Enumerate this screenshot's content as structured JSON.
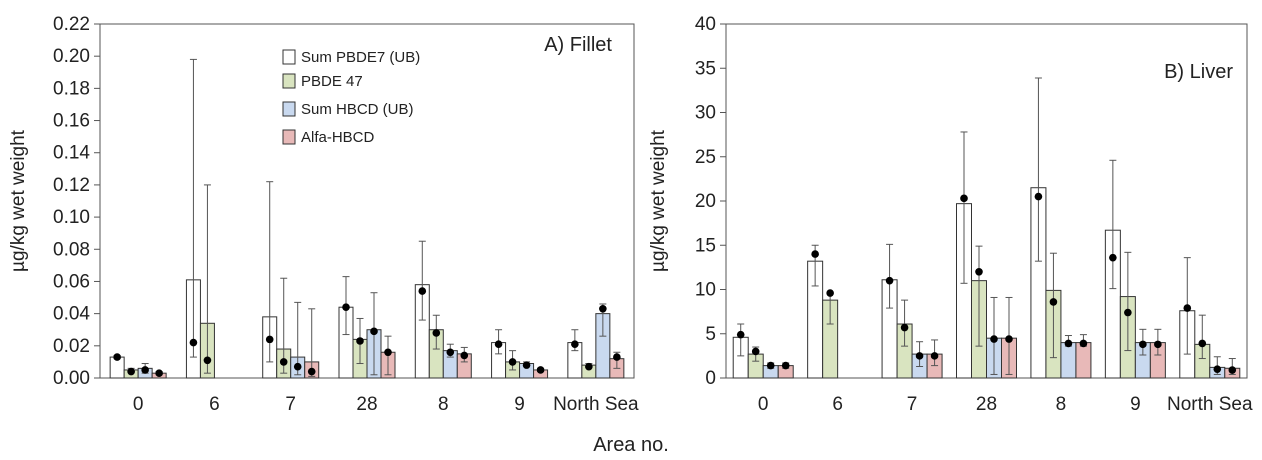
{
  "xlabel": "Area no.",
  "chart_data": [
    {
      "type": "bar",
      "title": "A) Fillet",
      "ylabel": "µg/kg wet weight",
      "xlabel": "Area no.",
      "ylim": [
        0,
        0.22
      ],
      "yticks": [
        "0.00",
        "0.02",
        "0.04",
        "0.06",
        "0.08",
        "0.10",
        "0.12",
        "0.14",
        "0.16",
        "0.18",
        "0.20",
        "0.22"
      ],
      "categories": [
        "0",
        "6",
        "7",
        "28",
        "8",
        "9",
        "North Sea"
      ],
      "legend_position": "top-right",
      "series": [
        {
          "name": "Sum PBDE7 (UB)",
          "color": "#ffffff",
          "values": [
            0.013,
            0.061,
            0.038,
            0.044,
            0.058,
            0.022,
            0.022
          ],
          "err_high": [
            0.014,
            0.198,
            0.122,
            0.063,
            0.085,
            0.03,
            0.03
          ],
          "err_low": [
            0.012,
            0.013,
            0.01,
            0.027,
            0.036,
            0.015,
            0.017
          ],
          "dots": [
            0.013,
            0.022,
            0.024,
            0.044,
            0.054,
            0.021,
            0.021
          ]
        },
        {
          "name": "PBDE 47",
          "color": "#d9e4c0",
          "values": [
            0.005,
            0.034,
            0.018,
            0.024,
            0.03,
            0.01,
            0.008
          ],
          "err_high": [
            0.006,
            0.12,
            0.062,
            0.037,
            0.039,
            0.017,
            0.009
          ],
          "err_low": [
            0.004,
            0.003,
            0.003,
            0.009,
            0.018,
            0.005,
            0.007
          ],
          "dots": [
            0.004,
            0.011,
            0.01,
            0.023,
            0.028,
            0.01,
            0.007
          ]
        },
        {
          "name": "Sum HBCD (UB)",
          "color": "#c9d9ef",
          "values": [
            0.006,
            null,
            0.013,
            0.03,
            0.017,
            0.009,
            0.04
          ],
          "err_high": [
            0.009,
            null,
            0.047,
            0.053,
            0.021,
            0.01,
            0.046
          ],
          "err_low": [
            0.003,
            null,
            0.002,
            0.002,
            0.013,
            0.008,
            0.026
          ],
          "dots": [
            0.005,
            null,
            0.007,
            0.029,
            0.016,
            0.008,
            0.043
          ]
        },
        {
          "name": "Alfa-HBCD",
          "color": "#e8b9b8",
          "values": [
            0.003,
            null,
            0.01,
            0.016,
            0.015,
            0.005,
            0.012
          ],
          "err_high": [
            0.004,
            null,
            0.043,
            0.026,
            0.019,
            0.006,
            0.016
          ],
          "err_low": [
            0.002,
            null,
            0.001,
            0.002,
            0.01,
            0.004,
            0.006
          ],
          "dots": [
            0.003,
            null,
            0.004,
            0.016,
            0.014,
            0.005,
            0.013
          ]
        }
      ]
    },
    {
      "type": "bar",
      "title": "B) Liver",
      "ylabel": "µg/kg wet weight",
      "xlabel": "Area no.",
      "ylim": [
        0,
        40
      ],
      "yticks": [
        "0",
        "5",
        "10",
        "15",
        "20",
        "25",
        "30",
        "35",
        "40"
      ],
      "categories": [
        "0",
        "6",
        "7",
        "28",
        "8",
        "9",
        "North Sea"
      ],
      "series": [
        {
          "name": "Sum PBDE7 (UB)",
          "color": "#ffffff",
          "values": [
            4.6,
            13.2,
            11.1,
            19.7,
            21.5,
            16.7,
            7.6
          ],
          "err_high": [
            6.1,
            15.0,
            15.1,
            27.8,
            33.9,
            24.6,
            13.6
          ],
          "err_low": [
            2.5,
            10.4,
            7.9,
            10.7,
            13.2,
            10.1,
            2.7
          ],
          "dots": [
            4.9,
            14.0,
            11.0,
            20.3,
            20.5,
            13.6,
            7.9
          ]
        },
        {
          "name": "PBDE 47",
          "color": "#d9e4c0",
          "values": [
            2.7,
            8.8,
            6.1,
            11.0,
            9.9,
            9.2,
            3.8
          ],
          "err_high": [
            3.5,
            9.6,
            8.8,
            14.9,
            14.1,
            14.2,
            7.1
          ],
          "err_low": [
            1.9,
            6.1,
            3.6,
            3.6,
            2.3,
            3.1,
            2.2
          ],
          "dots": [
            3.0,
            9.6,
            5.7,
            12.0,
            8.6,
            7.4,
            3.9
          ]
        },
        {
          "name": "Sum HBCD (UB)",
          "color": "#c9d9ef",
          "values": [
            1.4,
            null,
            2.7,
            4.5,
            4.0,
            4.0,
            1.2
          ],
          "err_high": [
            1.7,
            null,
            4.1,
            9.1,
            4.8,
            5.5,
            2.4
          ],
          "err_low": [
            1.1,
            null,
            1.3,
            0.4,
            3.6,
            2.6,
            0.4
          ],
          "dots": [
            1.4,
            null,
            2.5,
            4.4,
            3.9,
            3.8,
            1.0
          ]
        },
        {
          "name": "Alfa-HBCD",
          "color": "#e8b9b8",
          "values": [
            1.4,
            null,
            2.7,
            4.5,
            4.0,
            4.0,
            1.1
          ],
          "err_high": [
            1.7,
            null,
            4.3,
            9.1,
            4.9,
            5.5,
            2.2
          ],
          "err_low": [
            1.1,
            null,
            1.4,
            0.4,
            3.6,
            2.6,
            0.4
          ],
          "dots": [
            1.4,
            null,
            2.5,
            4.4,
            3.9,
            3.8,
            0.9
          ]
        }
      ]
    }
  ]
}
